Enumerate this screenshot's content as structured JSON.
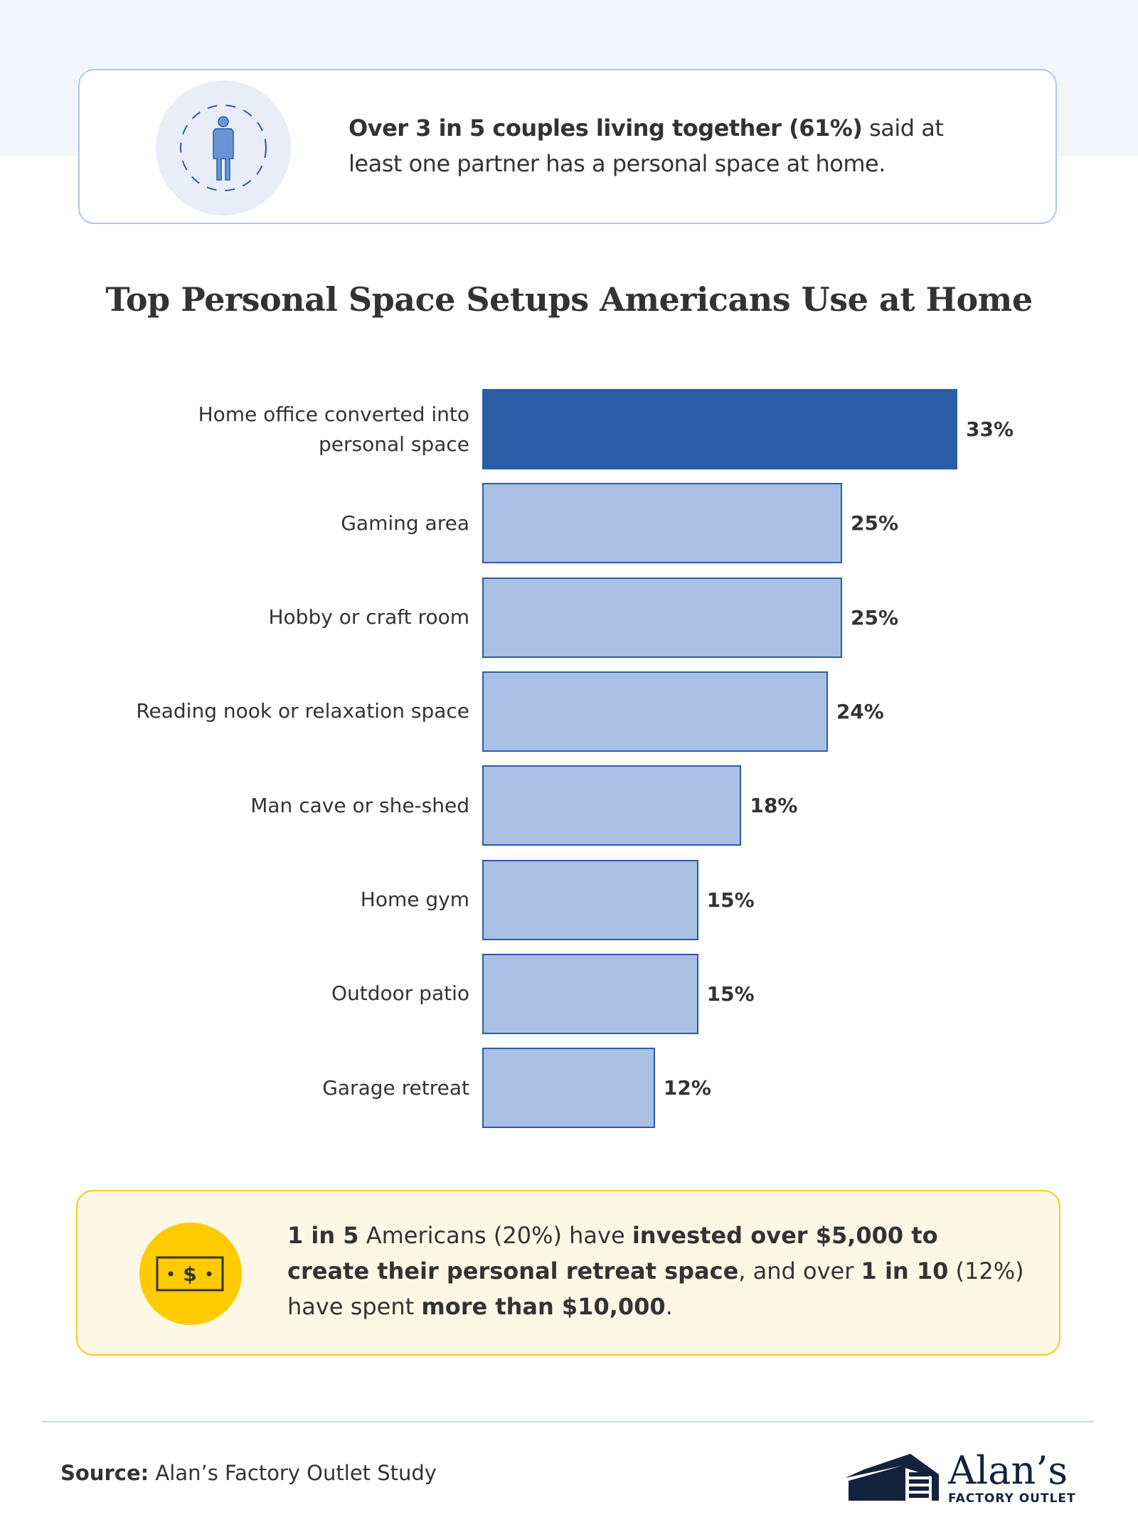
{
  "callout_top": {
    "icon": "person-icon",
    "bold": "Over 3 in 5 couples living together (61%)",
    "rest": " said at least one partner has a personal space at home."
  },
  "chart_data": {
    "type": "bar",
    "orientation": "horizontal",
    "title": "Top Personal Space Setups Americans Use at Home",
    "categories": [
      "Home office converted into personal space",
      "Gaming area",
      "Hobby or craft room",
      "Reading nook or relaxation space",
      "Man cave or she-shed",
      "Home gym",
      "Outdoor patio",
      "Garage retreat"
    ],
    "values": [
      33,
      25,
      25,
      24,
      18,
      15,
      15,
      12
    ],
    "value_labels": [
      "33%",
      "25%",
      "25%",
      "24%",
      "18%",
      "15%",
      "15%",
      "12%"
    ],
    "unit": "%",
    "highlight_index": 0,
    "colors": {
      "highlight": "#2b5ca6",
      "default": "#a9c0e4"
    },
    "xlabel": "",
    "ylabel": "",
    "xlim": [
      0,
      33
    ]
  },
  "callout_bottom": {
    "icon": "dollar-bill-icon",
    "p1": "1 in 5",
    "p2": " Americans (20%) have ",
    "p3": "invested over $5,000 to create their personal retreat space",
    "p4": ", and over ",
    "p5": "1 in 10",
    "p6": " (12%) have spent ",
    "p7": "more than $10,000",
    "p8": "."
  },
  "footer": {
    "source_label": "Source:",
    "source_text": " Alan’s Factory Outlet Study",
    "logo_name": "Alan’s",
    "logo_sub": "FACTORY OUTLET"
  }
}
